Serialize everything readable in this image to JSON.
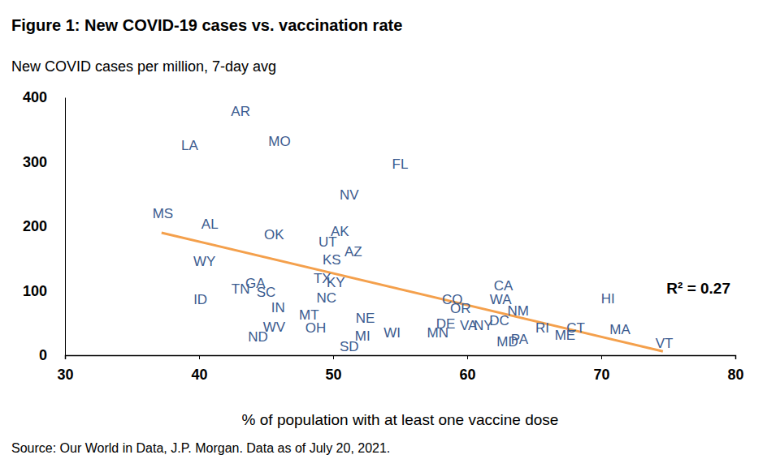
{
  "chart_data": {
    "type": "scatter",
    "title": "Figure 1: New COVID-19 cases vs. vaccination rate",
    "subtitle": "New COVID cases per million, 7-day avg",
    "x_label": "% of population with at least one vaccine dose",
    "source": "Source: Our World in Data, J.P. Morgan. Data as of July 20, 2021.",
    "annotation": "R² = 0.27",
    "xlim": [
      30,
      80
    ],
    "xticks": [
      30,
      40,
      50,
      60,
      70,
      80
    ],
    "ylim": [
      0,
      400
    ],
    "yticks": [
      0,
      100,
      200,
      300,
      400
    ],
    "grid": false,
    "series": [
      {
        "type": "scatter",
        "marker": "text",
        "color": "#3b5b8f",
        "labels": [
          "AR",
          "LA",
          "MO",
          "FL",
          "NV",
          "MS",
          "AL",
          "OK",
          "AK",
          "UT",
          "KS",
          "AZ",
          "WY",
          "TX",
          "KY",
          "NC",
          "GA",
          "TN",
          "SC",
          "IN",
          "ID",
          "MT",
          "OH",
          "WV",
          "ND",
          "NE",
          "MI",
          "SD",
          "WI",
          "MN",
          "CO",
          "OR",
          "DE",
          "VA",
          "NY",
          "DC",
          "CA",
          "WA",
          "NM",
          "MD",
          "PA",
          "RI",
          "ME",
          "CT",
          "HI",
          "MA",
          "VT"
        ],
        "x": [
          43.1,
          39.3,
          46.0,
          55.0,
          51.2,
          37.3,
          40.8,
          45.6,
          50.5,
          49.6,
          49.9,
          51.5,
          40.4,
          49.2,
          50.2,
          49.5,
          44.2,
          43.1,
          45.0,
          45.9,
          40.1,
          48.2,
          48.7,
          45.6,
          44.4,
          52.4,
          52.2,
          51.2,
          54.4,
          57.8,
          58.9,
          59.5,
          58.4,
          60.1,
          61.2,
          62.4,
          62.7,
          62.5,
          63.8,
          63.0,
          63.9,
          65.6,
          67.3,
          68.1,
          70.5,
          71.4,
          74.7
        ],
        "values": [
          378,
          325,
          331,
          296,
          249,
          220,
          203,
          187,
          192,
          175,
          148,
          160,
          145,
          119,
          112,
          89,
          111,
          102,
          97,
          73,
          86,
          62,
          42,
          43,
          28,
          57,
          30,
          13,
          35,
          35,
          86,
          72,
          48,
          46,
          46,
          53,
          107,
          86,
          68,
          21,
          25,
          42,
          31,
          42,
          87,
          39,
          18
        ]
      },
      {
        "type": "line",
        "line_style": "solid",
        "color": "#f4a04c",
        "x": [
          37.2,
          74.6
        ],
        "values": [
          190,
          6
        ]
      }
    ]
  }
}
